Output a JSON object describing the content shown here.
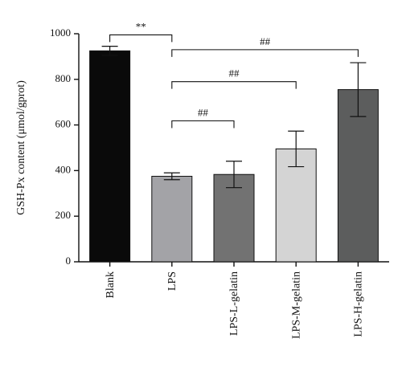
{
  "chart_data": {
    "type": "bar",
    "categories": [
      "Blank",
      "LPS",
      "LPS-L-gelatin",
      "LPS-M-gelatin",
      "LPS-H-gelatin"
    ],
    "values": [
      925,
      375,
      383,
      495,
      755
    ],
    "errors": [
      20,
      15,
      58,
      78,
      118
    ],
    "colors": [
      "#0a0a0a",
      "#a3a3a7",
      "#727272",
      "#d4d4d4",
      "#5c5d5d"
    ],
    "ylabel": "GSH-Px content (μmol/gprot)",
    "xlabel": "",
    "title": "",
    "ylim": [
      0,
      1000
    ],
    "yticks": [
      0,
      200,
      400,
      600,
      800,
      1000
    ],
    "grid": false,
    "annotations": [
      {
        "label": "**",
        "from": "Blank",
        "to": "LPS",
        "y": 995
      },
      {
        "label": "##",
        "from": "LPS",
        "to": "LPS-H-gelatin",
        "y": 930
      },
      {
        "label": "##",
        "from": "LPS",
        "to": "LPS-M-gelatin",
        "y": 790
      },
      {
        "label": "##",
        "from": "LPS",
        "to": "LPS-L-gelatin",
        "y": 618
      }
    ]
  }
}
